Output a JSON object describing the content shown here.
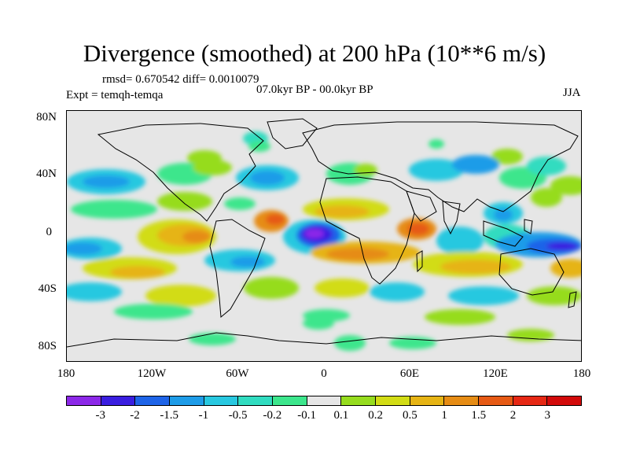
{
  "figure": {
    "title": "Divergence (smoothed) at 200 hPa (10**6 m/s)",
    "stats": "rmsd= 0.670542  diff= 0.0010079",
    "period": "07.0kyr BP - 00.0kyr BP",
    "experiment": "Expt = temqh-temqa",
    "season": "JJA"
  },
  "axes": {
    "lat_labels": [
      "80N",
      "40N",
      "0",
      "40S",
      "80S"
    ],
    "lon_labels": [
      "180",
      "120W",
      "60W",
      "0",
      "60E",
      "120E",
      "180"
    ]
  },
  "colorbar": {
    "levels": [
      "-3",
      "-2",
      "-1.5",
      "-1",
      "-0.5",
      "-0.2",
      "-0.1",
      "0.1",
      "0.2",
      "0.5",
      "1",
      "1.5",
      "2",
      "3"
    ],
    "colors": [
      "#8c28e8",
      "#3a1ee0",
      "#1e64e8",
      "#1e9ce8",
      "#28c8e0",
      "#30dcc0",
      "#3ce68c",
      "#e6e6e6",
      "#96dc1e",
      "#d2dc14",
      "#e6b414",
      "#e68c14",
      "#e65a14",
      "#e62814",
      "#d20a0a"
    ]
  },
  "colors": {
    "land_bg": "#e6e6e6",
    "coast": "#000000"
  }
}
